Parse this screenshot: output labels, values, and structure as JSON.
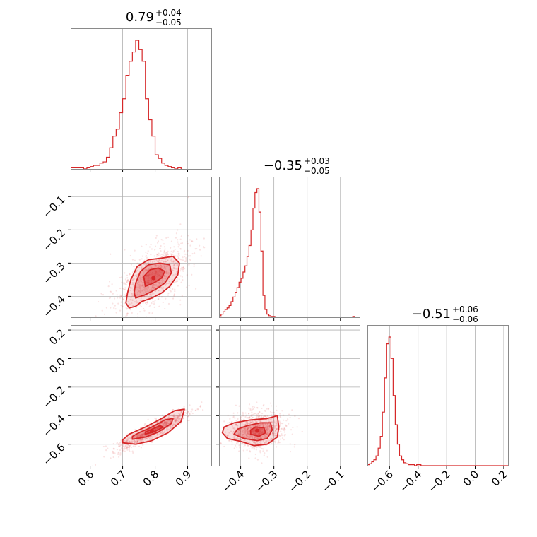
{
  "chart_data": {
    "type": "corner",
    "color": "#d62728",
    "grid": true,
    "parameters": [
      {
        "range": [
          0.54,
          0.975
        ],
        "ticks": [
          0.6,
          0.7,
          0.8,
          0.9
        ],
        "tick_labels": [
          "0.6",
          "0.7",
          "0.8",
          "0.9"
        ]
      },
      {
        "range": [
          -0.465,
          -0.04
        ],
        "ticks": [
          -0.4,
          -0.3,
          -0.2,
          -0.1
        ],
        "tick_labels": [
          "−0.4",
          "−0.3",
          "−0.2",
          "−0.1"
        ]
      },
      {
        "range": [
          -0.755,
          0.235
        ],
        "ticks": [
          -0.6,
          -0.4,
          -0.2,
          0.0,
          0.2
        ],
        "tick_labels": [
          "−0.6",
          "−0.4",
          "−0.2",
          "0.0",
          "0.2"
        ]
      }
    ],
    "titles": [
      {
        "main": "0.79",
        "plus": "+0.04",
        "minus": "−0.05"
      },
      {
        "main": "−0.35",
        "plus": "+0.03",
        "minus": "−0.05"
      },
      {
        "main": "−0.51",
        "plus": "+0.06",
        "minus": "−0.06"
      }
    ],
    "marginals": [
      {
        "param": 0,
        "edges_start": 0.54,
        "bin_width": 0.01,
        "counts": [
          1,
          1,
          1,
          1,
          0,
          1,
          2,
          3,
          3,
          5,
          6,
          10,
          18,
          28,
          34,
          48,
          60,
          80,
          92,
          100,
          110,
          102,
          92,
          60,
          42,
          28,
          12,
          9,
          5,
          3,
          2,
          1,
          0,
          1
        ]
      },
      {
        "param": 1,
        "edges_start": -0.465,
        "bin_width": 0.006,
        "counts": [
          2,
          4,
          7,
          10,
          12,
          15,
          20,
          26,
          32,
          38,
          45,
          50,
          58,
          66,
          78,
          92,
          112,
          140,
          160,
          165,
          135,
          85,
          28,
          10,
          4,
          2,
          1,
          1,
          0,
          0,
          0,
          0,
          0,
          0,
          0,
          0,
          0,
          0,
          0,
          0,
          0,
          0,
          0,
          0,
          0,
          0,
          0,
          0,
          0,
          0,
          0,
          0,
          0,
          0,
          0,
          0,
          0,
          0,
          0,
          0,
          0,
          0,
          0,
          0,
          0,
          0,
          0,
          1,
          0,
          0,
          0
        ]
      },
      {
        "param": 2,
        "edges_start": -0.755,
        "bin_width": 0.015,
        "counts": [
          1,
          2,
          4,
          6,
          10,
          18,
          30,
          55,
          90,
          125,
          132,
          110,
          72,
          42,
          22,
          10,
          6,
          3,
          2,
          1,
          1,
          1,
          0,
          1,
          1,
          0,
          0,
          0,
          0,
          0,
          0,
          0,
          0,
          0,
          0,
          0,
          0,
          0,
          0,
          0,
          0,
          0,
          0,
          0,
          0,
          0,
          0,
          0,
          0,
          0,
          0,
          0,
          0,
          0,
          0,
          0,
          0,
          0,
          0,
          0,
          0,
          0,
          0,
          0,
          0,
          0,
          1
        ]
      }
    ],
    "joints": [
      {
        "x_param": 0,
        "y_param": 1,
        "center": [
          0.795,
          -0.345
        ],
        "sd": [
          0.045,
          0.042
        ],
        "rho": 0.55,
        "contours": [
          [
            [
              0.72,
              -0.435
            ],
            [
              0.74,
              -0.43
            ],
            [
              0.76,
              -0.415
            ],
            [
              0.79,
              -0.405
            ],
            [
              0.82,
              -0.39
            ],
            [
              0.845,
              -0.37
            ],
            [
              0.87,
              -0.335
            ],
            [
              0.875,
              -0.3
            ],
            [
              0.855,
              -0.28
            ],
            [
              0.82,
              -0.285
            ],
            [
              0.78,
              -0.29
            ],
            [
              0.745,
              -0.31
            ],
            [
              0.725,
              -0.35
            ],
            [
              0.715,
              -0.39
            ],
            [
              0.71,
              -0.42
            ],
            [
              0.72,
              -0.435
            ]
          ],
          [
            [
              0.74,
              -0.405
            ],
            [
              0.77,
              -0.395
            ],
            [
              0.8,
              -0.38
            ],
            [
              0.83,
              -0.36
            ],
            [
              0.85,
              -0.33
            ],
            [
              0.845,
              -0.305
            ],
            [
              0.815,
              -0.3
            ],
            [
              0.78,
              -0.305
            ],
            [
              0.755,
              -0.325
            ],
            [
              0.74,
              -0.36
            ],
            [
              0.735,
              -0.39
            ],
            [
              0.74,
              -0.405
            ]
          ],
          [
            [
              0.77,
              -0.37
            ],
            [
              0.795,
              -0.36
            ],
            [
              0.82,
              -0.345
            ],
            [
              0.83,
              -0.325
            ],
            [
              0.81,
              -0.315
            ],
            [
              0.785,
              -0.32
            ],
            [
              0.765,
              -0.34
            ],
            [
              0.77,
              -0.37
            ]
          ]
        ]
      },
      {
        "x_param": 0,
        "y_param": 2,
        "center": [
          0.79,
          -0.51
        ],
        "sd": [
          0.045,
          0.055
        ],
        "rho": 0.93,
        "contours": [
          [
            [
              0.7,
              -0.59
            ],
            [
              0.74,
              -0.6
            ],
            [
              0.79,
              -0.575
            ],
            [
              0.84,
              -0.52
            ],
            [
              0.88,
              -0.44
            ],
            [
              0.89,
              -0.355
            ],
            [
              0.86,
              -0.365
            ],
            [
              0.82,
              -0.42
            ],
            [
              0.77,
              -0.48
            ],
            [
              0.72,
              -0.53
            ],
            [
              0.7,
              -0.57
            ],
            [
              0.7,
              -0.59
            ]
          ],
          [
            [
              0.73,
              -0.565
            ],
            [
              0.77,
              -0.55
            ],
            [
              0.81,
              -0.515
            ],
            [
              0.85,
              -0.455
            ],
            [
              0.855,
              -0.42
            ],
            [
              0.83,
              -0.43
            ],
            [
              0.79,
              -0.48
            ],
            [
              0.75,
              -0.52
            ],
            [
              0.73,
              -0.545
            ],
            [
              0.73,
              -0.565
            ]
          ],
          [
            [
              0.77,
              -0.53
            ],
            [
              0.8,
              -0.51
            ],
            [
              0.825,
              -0.48
            ],
            [
              0.815,
              -0.47
            ],
            [
              0.79,
              -0.495
            ],
            [
              0.77,
              -0.515
            ],
            [
              0.77,
              -0.53
            ]
          ]
        ]
      },
      {
        "x_param": 1,
        "y_param": 2,
        "center": [
          -0.35,
          -0.505
        ],
        "sd": [
          0.035,
          0.055
        ],
        "rho": 0.1,
        "contours": [
          [
            [
              -0.455,
              -0.52
            ],
            [
              -0.44,
              -0.56
            ],
            [
              -0.4,
              -0.58
            ],
            [
              -0.36,
              -0.61
            ],
            [
              -0.32,
              -0.6
            ],
            [
              -0.29,
              -0.55
            ],
            [
              -0.285,
              -0.48
            ],
            [
              -0.29,
              -0.4
            ],
            [
              -0.32,
              -0.42
            ],
            [
              -0.37,
              -0.43
            ],
            [
              -0.42,
              -0.45
            ],
            [
              -0.45,
              -0.48
            ],
            [
              -0.455,
              -0.52
            ]
          ],
          [
            [
              -0.42,
              -0.53
            ],
            [
              -0.39,
              -0.56
            ],
            [
              -0.35,
              -0.575
            ],
            [
              -0.32,
              -0.56
            ],
            [
              -0.305,
              -0.5
            ],
            [
              -0.31,
              -0.45
            ],
            [
              -0.34,
              -0.45
            ],
            [
              -0.38,
              -0.47
            ],
            [
              -0.41,
              -0.495
            ],
            [
              -0.42,
              -0.53
            ]
          ],
          [
            [
              -0.37,
              -0.53
            ],
            [
              -0.345,
              -0.545
            ],
            [
              -0.325,
              -0.52
            ],
            [
              -0.33,
              -0.485
            ],
            [
              -0.355,
              -0.48
            ],
            [
              -0.37,
              -0.5
            ],
            [
              -0.37,
              -0.53
            ]
          ]
        ]
      }
    ]
  }
}
